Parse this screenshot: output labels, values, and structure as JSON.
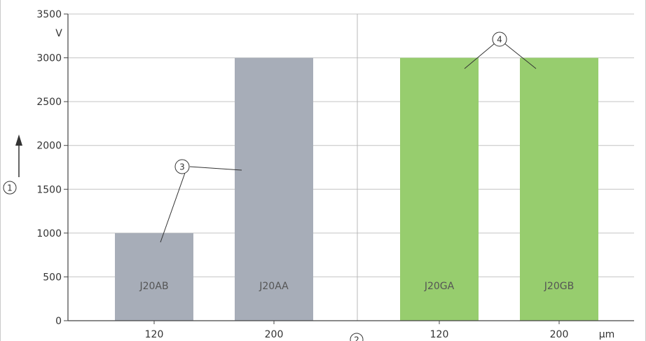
{
  "chart_data": {
    "type": "bar",
    "y_unit": "V",
    "x_unit": "µm",
    "ylim": [
      0,
      3500
    ],
    "y_ticks": [
      0,
      500,
      1000,
      1500,
      2000,
      2500,
      3000,
      3500
    ],
    "grid": true,
    "categories": [
      "120",
      "200",
      "120",
      "200"
    ],
    "bars": [
      {
        "label": "J20AB",
        "category": "120",
        "value": 1000,
        "color": "#a7adb8"
      },
      {
        "label": "J20AA",
        "category": "200",
        "value": 3000,
        "color": "#a7adb8"
      },
      {
        "label": "J20GA",
        "category": "120",
        "value": 3000,
        "color": "#97cd6e"
      },
      {
        "label": "J20GB",
        "category": "200",
        "value": 3000,
        "color": "#97cd6e"
      }
    ],
    "callouts": {
      "y_axis": "1",
      "x_axis": "2",
      "gray_bars": "3",
      "green_bars": "4"
    }
  }
}
